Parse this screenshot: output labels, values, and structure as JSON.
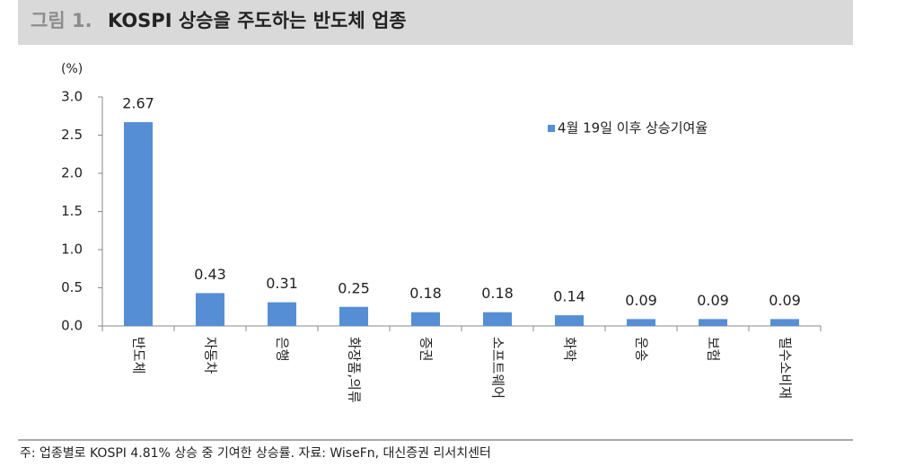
{
  "figure_label": "그림 1.",
  "footnote": "주: 업종별로 KOSPI 4.81% 상승 중 기여한 상승률. 자료: WiseFn, 대신증권 리서치센터",
  "chart_data": {
    "type": "bar",
    "title": "KOSPI 상승을 주도하는 반도체 업종",
    "y_label": "(%)",
    "categories": [
      "반도체",
      "자동차",
      "은행",
      "화장품,의류",
      "증권",
      "소프트웨어",
      "화학",
      "운송",
      "보험",
      "필수소비재"
    ],
    "series": [
      {
        "name": "4월 19일 이후 상승기여율",
        "color": "#558ed5",
        "values": [
          2.67,
          0.43,
          0.31,
          0.25,
          0.18,
          0.18,
          0.14,
          0.09,
          0.09,
          0.09
        ]
      }
    ],
    "ylim": [
      0,
      3
    ],
    "yticks": [
      {
        "value": 0,
        "label": "0.0"
      },
      0.5,
      {
        "value": 1,
        "label": "1.0"
      },
      1.5,
      {
        "value": 2,
        "label": "2.0"
      },
      2.5,
      {
        "value": 3,
        "label": "3.0"
      }
    ],
    "legend": "top-right"
  }
}
